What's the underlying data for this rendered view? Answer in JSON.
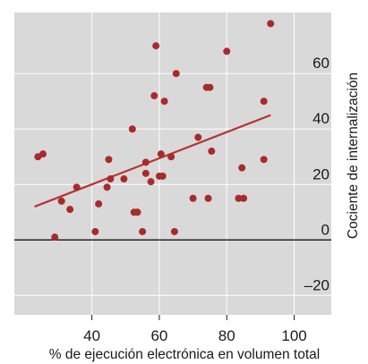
{
  "chart_data": {
    "type": "scatter",
    "title": "",
    "xlabel": "% de ejecución electrónica en volumen total",
    "ylabel": "Cociente de internalización",
    "xlim": [
      17,
      111
    ],
    "ylim": [
      -27,
      82
    ],
    "x_ticks": [
      40,
      60,
      80,
      100
    ],
    "x_tick_labels": [
      "40",
      "60",
      "80",
      "100"
    ],
    "y_ticks": [
      -20,
      0,
      20,
      40,
      60
    ],
    "y_tick_labels": [
      "–20",
      "0",
      "20",
      "40",
      "60"
    ],
    "grid": true,
    "zero_line": true,
    "colors": {
      "background": "#d9d9d9",
      "grid": "#ffffff",
      "points": "#a82b2b",
      "trendline": "#b83232",
      "zero_line": "#000000"
    },
    "points": [
      {
        "x": 24,
        "y": 30
      },
      {
        "x": 25.5,
        "y": 31
      },
      {
        "x": 29,
        "y": 1
      },
      {
        "x": 31,
        "y": 14
      },
      {
        "x": 33.5,
        "y": 11
      },
      {
        "x": 35.5,
        "y": 19
      },
      {
        "x": 41,
        "y": 3
      },
      {
        "x": 42,
        "y": 13
      },
      {
        "x": 44.5,
        "y": 19
      },
      {
        "x": 45,
        "y": 29
      },
      {
        "x": 45.5,
        "y": 22
      },
      {
        "x": 49.5,
        "y": 22
      },
      {
        "x": 52,
        "y": 40
      },
      {
        "x": 52.5,
        "y": 10
      },
      {
        "x": 53.5,
        "y": 10
      },
      {
        "x": 55,
        "y": 3
      },
      {
        "x": 56,
        "y": 28
      },
      {
        "x": 56,
        "y": 24
      },
      {
        "x": 57.5,
        "y": 21
      },
      {
        "x": 58.5,
        "y": 52
      },
      {
        "x": 59,
        "y": 70
      },
      {
        "x": 60,
        "y": 23
      },
      {
        "x": 60.5,
        "y": 31
      },
      {
        "x": 61,
        "y": 23
      },
      {
        "x": 61.5,
        "y": 50
      },
      {
        "x": 63.5,
        "y": 30
      },
      {
        "x": 64.5,
        "y": 3
      },
      {
        "x": 65,
        "y": 60
      },
      {
        "x": 70,
        "y": 15
      },
      {
        "x": 71.5,
        "y": 37
      },
      {
        "x": 74,
        "y": 55
      },
      {
        "x": 74.5,
        "y": 15
      },
      {
        "x": 75,
        "y": 55
      },
      {
        "x": 75.5,
        "y": 32
      },
      {
        "x": 80,
        "y": 68
      },
      {
        "x": 83.5,
        "y": 15
      },
      {
        "x": 84.5,
        "y": 26
      },
      {
        "x": 85,
        "y": 15
      },
      {
        "x": 91,
        "y": 29
      },
      {
        "x": 91,
        "y": 50
      },
      {
        "x": 93,
        "y": 78
      }
    ],
    "trendline": {
      "x": [
        23,
        93
      ],
      "y": [
        12,
        45
      ]
    }
  }
}
